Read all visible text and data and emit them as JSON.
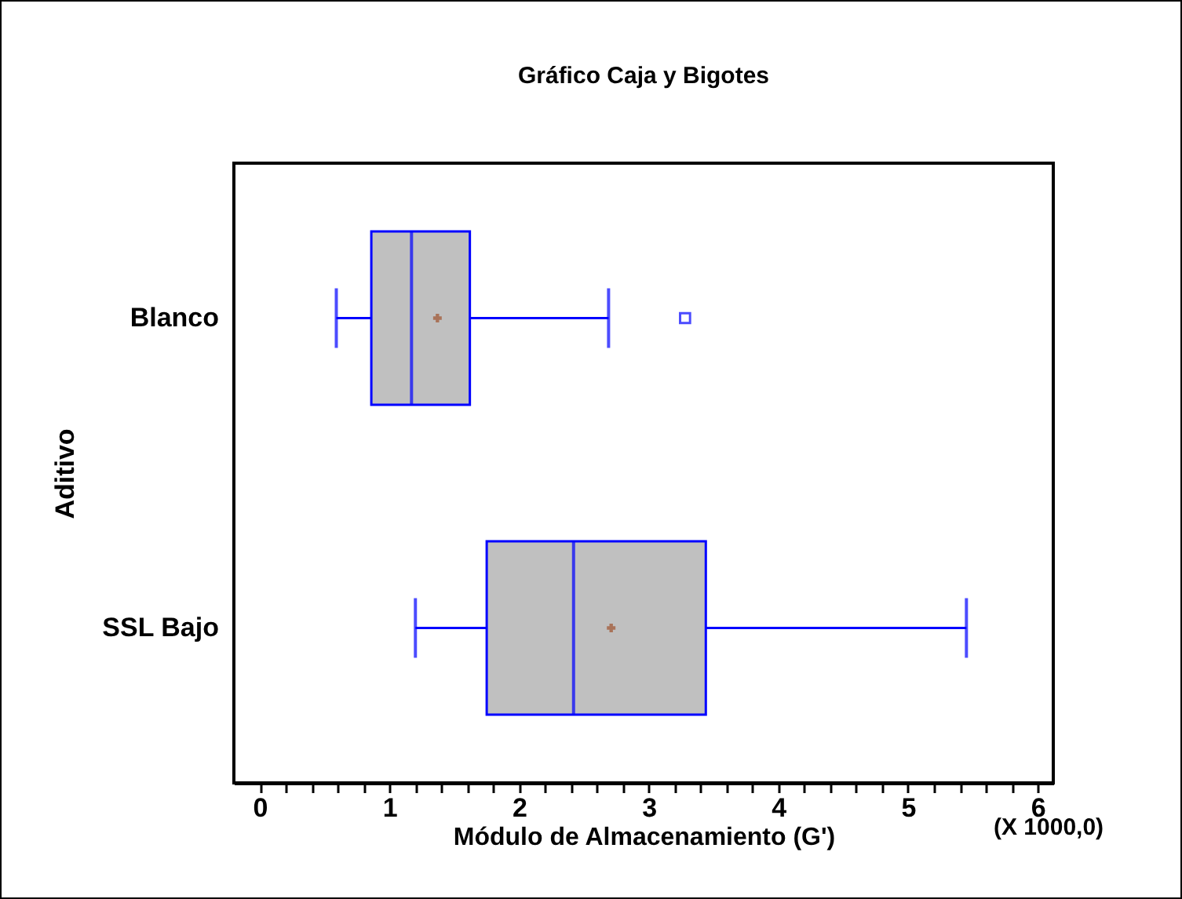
{
  "chart_data": {
    "type": "box",
    "title": "Gráfico Caja y Bigotes",
    "xlabel": "Módulo de Almacenamiento (G')",
    "ylabel": "Aditivo",
    "orientation": "horizontal",
    "categories": [
      "Blanco",
      "SSL Bajo"
    ],
    "color": "#0000ff",
    "boxes": [
      {
        "low": 0.59,
        "q1": 0.86,
        "median": 1.17,
        "q3": 1.62,
        "high": 2.69,
        "mean": 1.37,
        "outliers": [
          3.28
        ]
      },
      {
        "low": 1.2,
        "q1": 1.75,
        "median": 2.42,
        "q3": 3.44,
        "high": 5.45,
        "mean": 2.71
      }
    ],
    "xlim": [
      -0.2,
      6.12
    ],
    "xticks": [
      0,
      {
        "value": 0.2,
        "label": null
      },
      {
        "value": 0.4,
        "label": null
      },
      {
        "value": 0.6,
        "label": null
      },
      {
        "value": 0.8,
        "label": null
      },
      1,
      {
        "value": 1.2,
        "label": null
      },
      {
        "value": 1.4,
        "label": null
      },
      {
        "value": 1.6,
        "label": null
      },
      {
        "value": 1.8,
        "label": null
      },
      2,
      {
        "value": 2.2,
        "label": null
      },
      {
        "value": 2.4,
        "label": null
      },
      {
        "value": 2.6,
        "label": null
      },
      {
        "value": 2.8,
        "label": null
      },
      3,
      {
        "value": 3.2,
        "label": null
      },
      {
        "value": 3.4,
        "label": null
      },
      {
        "value": 3.6,
        "label": null
      },
      {
        "value": 3.8,
        "label": null
      },
      4,
      {
        "value": 4.2,
        "label": null
      },
      {
        "value": 4.4,
        "label": null
      },
      {
        "value": 4.6,
        "label": null
      },
      {
        "value": 4.8,
        "label": null
      },
      5,
      {
        "value": 5.2,
        "label": null
      },
      {
        "value": 5.4,
        "label": null
      },
      {
        "value": 5.6,
        "label": null
      },
      {
        "value": 5.8,
        "label": null
      },
      6
    ],
    "annotations": [
      "(X 1000,0)"
    ],
    "grid": false
  }
}
